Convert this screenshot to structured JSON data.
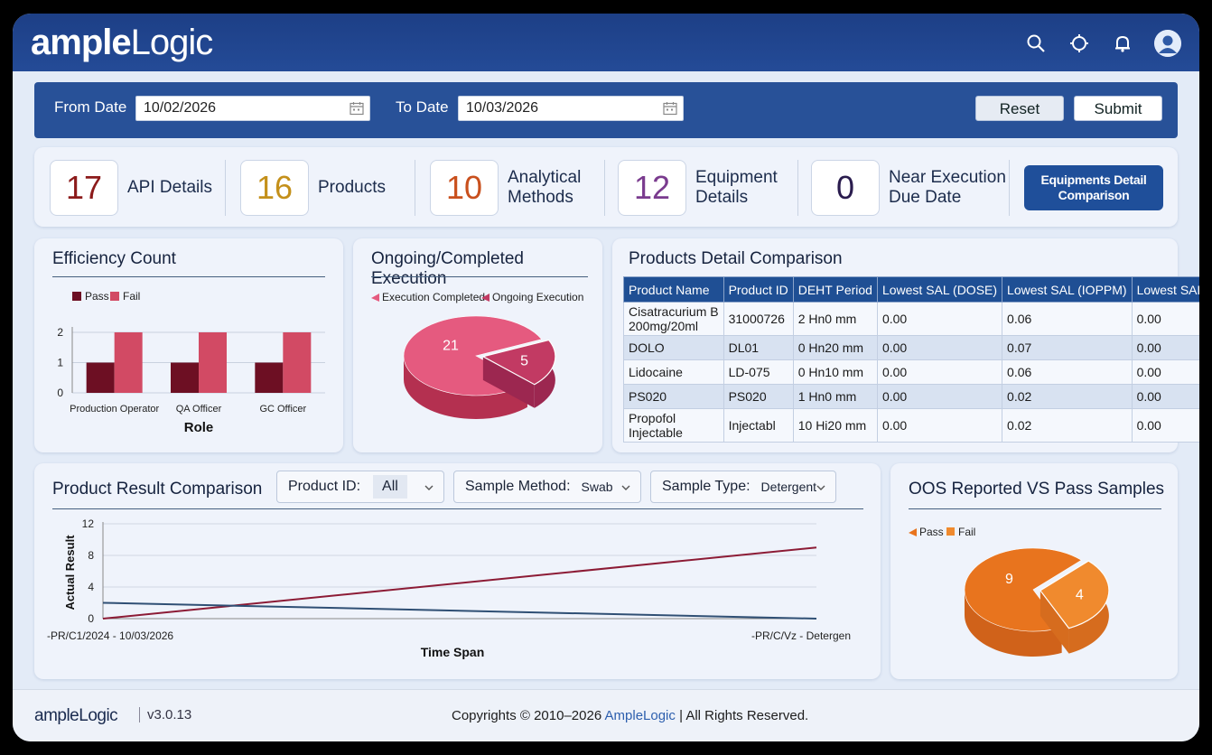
{
  "header": {
    "logo_bold": "ample",
    "logo_light": "Logic",
    "icons": [
      "search-icon",
      "crosshair-icon",
      "bell-icon",
      "user-avatar-icon"
    ]
  },
  "filters": {
    "from_label": "From Date",
    "from_value": "10/02/2026",
    "to_label": "To Date",
    "to_value": "10/03/2026",
    "reset_label": "Reset",
    "submit_label": "Submit"
  },
  "stats": [
    {
      "value": "17",
      "label1": "API Details",
      "label2": "",
      "color": "#8c1b1b"
    },
    {
      "value": "16",
      "label1": "Products",
      "label2": "",
      "color": "#c4901a"
    },
    {
      "value": "10",
      "label1": "Analytical",
      "label2": "Methods",
      "color": "#c9501d"
    },
    {
      "value": "12",
      "label1": "Equipment",
      "label2": "Details",
      "color": "#7a3b8e"
    },
    {
      "value": "0",
      "label1": "Near Execution",
      "label2": "Due Date",
      "color": "#2a1c4e"
    }
  ],
  "equipments_button": {
    "line1": "Equipments Detail",
    "line2": "Comparison"
  },
  "efficiency": {
    "title": "Efficiency Count",
    "chart_data": {
      "type": "bar",
      "categories": [
        "Production Operator",
        "QA Officer",
        "GC Officer"
      ],
      "series": [
        {
          "name": "Pass",
          "values": [
            1,
            1,
            1
          ],
          "color": "#6d0f23"
        },
        {
          "name": "Fail",
          "values": [
            2,
            2,
            2
          ],
          "color": "#d24a64"
        }
      ],
      "xlabel": "Role",
      "ylim": [
        0,
        2
      ],
      "yticks": [
        0,
        1,
        2
      ]
    }
  },
  "execution": {
    "title": "Ongoing/Completed Execution",
    "chart_data": {
      "type": "pie",
      "labels": [
        "Execution Completed",
        "Ongoing Execution"
      ],
      "values": [
        21,
        5
      ],
      "colors": [
        "#e55a7f",
        "#c23a63"
      ]
    }
  },
  "products_detail": {
    "title": "Products Detail Comparison",
    "columns": [
      "Product Name",
      "Product ID",
      "DEHT Period",
      "Lowest SAL (DOSE)",
      "Lowest SAL (IOPPM)",
      "Lowest SAL (TOXICITY)"
    ],
    "rows": [
      {
        "name1": "Cisatracurium B",
        "name2": "200mg/20ml",
        "id": "31000726",
        "deht": "2 Hn0 mm",
        "dose": "0.00",
        "ioppm": "0.06",
        "tox": "0.00"
      },
      {
        "name1": "DOLO",
        "name2": "",
        "id": "DL01",
        "deht": "0 Hn20 mm",
        "dose": "0.00",
        "ioppm": "0.07",
        "tox": "0.00"
      },
      {
        "name1": "Lidocaine",
        "name2": "",
        "id": "LD-075",
        "deht": "0 Hn10 mm",
        "dose": "0.00",
        "ioppm": "0.06",
        "tox": "0.00"
      },
      {
        "name1": "PS020",
        "name2": "",
        "id": "PS020",
        "deht": "1 Hn0 mm",
        "dose": "0.00",
        "ioppm": "0.02",
        "tox": "0.00"
      },
      {
        "name1": "Propofol",
        "name2": "Injectable",
        "id": "Injectabl",
        "deht": "10 Hi20 mm",
        "dose": "0.00",
        "ioppm": "0.02",
        "tox": "0.00"
      }
    ]
  },
  "result_comparison": {
    "title": "Product Result Comparison",
    "product_id_label": "Product ID:",
    "product_id_value": "All",
    "sample_method_label": "Sample Method:",
    "sample_method_value": "Swab",
    "sample_type_label": "Sample Type:",
    "sample_type_value": "Detergent",
    "chart_data": {
      "type": "line",
      "x": [
        "-PR/C1/2024 - 10/03/2026",
        "-PR/C/Vz - Detergen"
      ],
      "series": [
        {
          "values": [
            0,
            9
          ],
          "color": "#8c1b35"
        },
        {
          "values": [
            2,
            0
          ],
          "color": "#2f4f74"
        }
      ],
      "xlabel": "Time Span",
      "ylabel": "Actual Result",
      "ylim": [
        0,
        12
      ],
      "yticks": [
        0,
        4,
        8,
        12
      ]
    }
  },
  "oos": {
    "title": "OOS Reported VS Pass Samples",
    "chart_data": {
      "type": "pie",
      "labels": [
        "Pass",
        "Fail"
      ],
      "values": [
        9,
        4
      ],
      "colors": [
        "#e8741e",
        "#f08a2e"
      ]
    }
  },
  "footer": {
    "logo": "ampleLogic",
    "version": "v3.0.13",
    "copyright": "Copyrights © 2010–2026",
    "brand": "AmpleLogic",
    "rights": "| All Rights Reserved."
  }
}
